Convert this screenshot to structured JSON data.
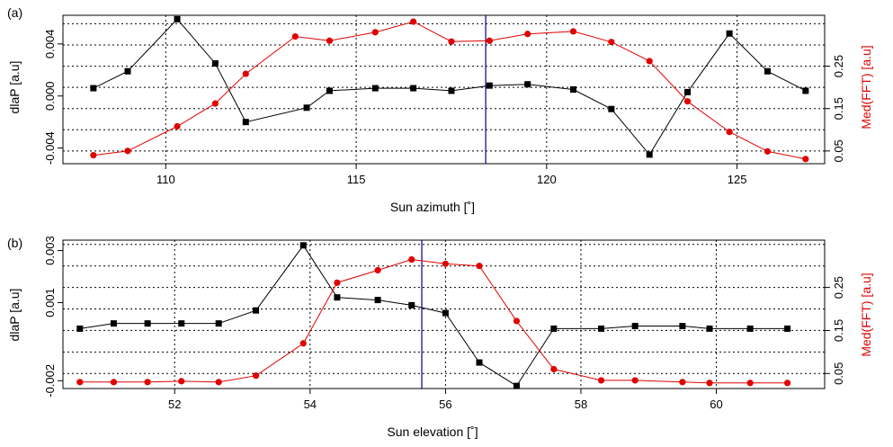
{
  "chart_data": [
    {
      "type": "line",
      "panel_label": "(a)",
      "xlabel": "Sun azimuth [˚]",
      "ylabel_left": "dlaP [a.u]",
      "ylabel_right": "Med(FFT) [a.u]",
      "xlim": [
        107.3,
        127.3
      ],
      "ylim_left": [
        -0.0052,
        0.0062
      ],
      "ylim_right": [
        0.02,
        0.37
      ],
      "xticks": [
        110,
        115,
        120,
        125
      ],
      "yticks_left": [
        -0.004,
        0.0,
        0.004
      ],
      "ytick_labels_left": [
        "-0.004",
        "0.000",
        "0.004"
      ],
      "yticks_right": [
        0.05,
        0.15,
        0.25
      ],
      "ytick_labels_right": [
        "0.05",
        "0.15",
        "0.25"
      ],
      "grid": "dotted",
      "vline_x": 118.4,
      "vline_color": "#00008b",
      "series": [
        {
          "axis": "left",
          "color": "#000000",
          "marker": "square",
          "x": [
            108.1,
            109.0,
            110.3,
            111.3,
            112.1,
            113.7,
            114.3,
            115.5,
            116.5,
            117.5,
            118.5,
            119.5,
            120.7,
            121.7,
            122.7,
            123.7,
            124.8,
            125.8,
            126.8
          ],
          "y": [
            0.0006,
            0.0019,
            0.0059,
            0.0025,
            -0.002,
            -0.0009,
            0.0004,
            0.0006,
            0.0006,
            0.0004,
            0.0008,
            0.0009,
            0.0005,
            -0.001,
            -0.0045,
            0.0003,
            0.0048,
            0.0019,
            0.0004
          ]
        },
        {
          "axis": "right",
          "color": "#e00000",
          "marker": "circle",
          "x": [
            108.1,
            109.0,
            110.3,
            111.3,
            112.1,
            113.4,
            114.3,
            115.5,
            116.5,
            117.5,
            118.5,
            119.5,
            120.7,
            121.7,
            122.7,
            123.7,
            124.8,
            125.8,
            126.8
          ],
          "y": [
            0.04,
            0.05,
            0.108,
            0.162,
            0.232,
            0.32,
            0.31,
            0.33,
            0.355,
            0.308,
            0.31,
            0.326,
            0.332,
            0.307,
            0.262,
            0.167,
            0.095,
            0.049,
            0.031
          ]
        }
      ]
    },
    {
      "type": "line",
      "panel_label": "(b)",
      "xlabel": "Sun elevation [˚]",
      "ylabel_left": "dlaP [a.u]",
      "ylabel_right": "Med(FFT) [a.u]",
      "xlim": [
        50.35,
        61.6
      ],
      "ylim_left": [
        -0.0023,
        0.0034
      ],
      "ylim_right": [
        0.015,
        0.36
      ],
      "xticks": [
        52,
        54,
        56,
        58,
        60
      ],
      "yticks_left": [
        -0.002,
        0.001,
        0.003
      ],
      "ytick_labels_left": [
        "-0.002",
        "0.001",
        "0.003"
      ],
      "yticks_right": [
        0.05,
        0.15,
        0.25
      ],
      "ytick_labels_right": [
        "0.05",
        "0.15",
        "0.25"
      ],
      "grid": "dotted",
      "vline_x": 55.65,
      "vline_color": "#00008b",
      "series": [
        {
          "axis": "left",
          "color": "#000000",
          "marker": "square",
          "x": [
            50.6,
            51.1,
            51.6,
            52.1,
            52.65,
            53.2,
            53.9,
            54.4,
            55.0,
            55.5,
            56.0,
            56.5,
            57.05,
            57.6,
            58.3,
            58.8,
            59.5,
            59.9,
            60.5,
            61.05
          ],
          "y": [
            0.0,
            0.0002,
            0.0002,
            0.0002,
            0.0002,
            0.0007,
            0.0032,
            0.0012,
            0.0011,
            0.0009,
            0.0006,
            -0.0013,
            -0.0022,
            0.0,
            0.0,
            0.0001,
            0.0001,
            0.0,
            0.0,
            0.0
          ]
        },
        {
          "axis": "right",
          "color": "#e00000",
          "marker": "circle",
          "x": [
            50.6,
            51.1,
            51.6,
            52.1,
            52.65,
            53.2,
            53.9,
            54.4,
            55.0,
            55.5,
            56.0,
            56.5,
            57.05,
            57.6,
            58.3,
            58.8,
            59.5,
            59.9,
            60.5,
            61.05
          ],
          "y": [
            0.03,
            0.03,
            0.03,
            0.032,
            0.03,
            0.045,
            0.12,
            0.261,
            0.29,
            0.315,
            0.305,
            0.3,
            0.172,
            0.06,
            0.034,
            0.034,
            0.03,
            0.028,
            0.028,
            0.028
          ]
        }
      ]
    }
  ]
}
